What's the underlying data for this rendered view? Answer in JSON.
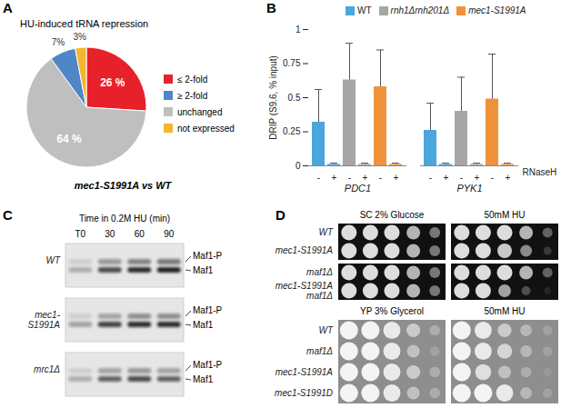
{
  "chart_data": [
    {
      "panel": "A",
      "type": "pie",
      "title": "HU-induced tRNA repression",
      "caption": "mec1-S1991A vs WT",
      "categories": [
        "≤ 2-fold",
        "≥ 2-fold",
        "unchanged",
        "not expressed"
      ],
      "values": [
        26,
        7,
        64,
        3
      ],
      "value_labels": [
        "26 %",
        "7%",
        "64 %",
        "3%"
      ],
      "colors": [
        "#e8202a",
        "#4f86c6",
        "#bfbfbf",
        "#f2b630"
      ],
      "legend": "right",
      "data_labels": true
    },
    {
      "panel": "B",
      "type": "bar",
      "ylabel": "DRIP (S9.6, % input)",
      "xlabel": "RNaseH",
      "categories": [
        "PDC1",
        "PYK1"
      ],
      "subcategories": [
        "-",
        "+"
      ],
      "series": [
        {
          "name": "WT",
          "color": "#4aa6dc",
          "values": [
            [
              0.32,
              0.01
            ],
            [
              0.26,
              0.01
            ]
          ],
          "errors": [
            [
              0.24,
              0.01
            ],
            [
              0.2,
              0.01
            ]
          ]
        },
        {
          "name": "rnh1Δrnh201Δ",
          "color": "#a6a6a6",
          "values": [
            [
              0.63,
              0.01
            ],
            [
              0.4,
              0.01
            ]
          ],
          "errors": [
            [
              0.27,
              0.01
            ],
            [
              0.25,
              0.01
            ]
          ]
        },
        {
          "name": "mec1-S1991A",
          "color": "#f0923c",
          "values": [
            [
              0.58,
              0.01
            ],
            [
              0.49,
              0.01
            ]
          ],
          "errors": [
            [
              0.27,
              0.01
            ],
            [
              0.33,
              0.01
            ]
          ]
        }
      ],
      "ylim": [
        0,
        1
      ],
      "yticks": [
        0,
        0.25,
        0.5,
        0.75,
        1
      ],
      "legend": "top-right"
    }
  ],
  "blot": {
    "panel": "C",
    "title": "Time in 0.2M HU (min)",
    "lanes": [
      "T0",
      "30",
      "60",
      "90"
    ],
    "bands": [
      "Maf1-P",
      "Maf1"
    ],
    "strains": [
      {
        "name": "WT",
        "intensity": [
          [
            0.1,
            0.25
          ],
          [
            0.35,
            0.7
          ],
          [
            0.45,
            0.85
          ],
          [
            0.5,
            0.9
          ]
        ]
      },
      {
        "name": "mec1-S1991A",
        "intensity": [
          [
            0.1,
            0.3
          ],
          [
            0.3,
            0.75
          ],
          [
            0.4,
            0.85
          ],
          [
            0.4,
            0.85
          ]
        ]
      },
      {
        "name": "mrc1Δ",
        "intensity": [
          [
            0.1,
            0.25
          ],
          [
            0.3,
            0.6
          ],
          [
            0.35,
            0.7
          ],
          [
            0.3,
            0.6
          ]
        ]
      }
    ]
  },
  "spot_assay": {
    "panel": "D",
    "blocks": [
      {
        "media": [
          "SC 2% Glucose",
          "50mM HU"
        ],
        "groups": [
          [
            {
              "strain": "WT",
              "growth": [
                [
                  1,
                  1,
                  1,
                  0.8,
                  0.5
                ],
                [
                  1,
                  1,
                  1,
                  0.8,
                  0.4
                ]
              ]
            },
            {
              "strain": "mec1-S1991A",
              "growth": [
                [
                  1,
                  1,
                  1,
                  0.8,
                  0.5
                ],
                [
                  1,
                  1,
                  0.9,
                  0.6,
                  0.2
                ]
              ]
            }
          ],
          [
            {
              "strain": "maf1Δ",
              "growth": [
                [
                  1,
                  1,
                  1,
                  0.8,
                  0.5
                ],
                [
                  1,
                  1,
                  1,
                  0.8,
                  0.4
                ]
              ]
            },
            {
              "strain": "mec1-S1991A maf1Δ",
              "growth": [
                [
                  1,
                  1,
                  1,
                  0.8,
                  0.5
                ],
                [
                  1,
                  1,
                  0.7,
                  0.3,
                  0.1
                ]
              ]
            }
          ]
        ]
      },
      {
        "media": [
          "YP 3% Glycerol",
          "50mM HU"
        ],
        "groups": [
          [
            {
              "strain": "WT",
              "growth": [
                [
                  1,
                  1,
                  0.9,
                  0.6,
                  0.3
                ],
                [
                  1,
                  0.9,
                  0.6,
                  0.4,
                  0.2
                ]
              ]
            },
            {
              "strain": "maf1Δ",
              "growth": [
                [
                  1,
                  1,
                  0.9,
                  0.5,
                  0.2
                ],
                [
                  1,
                  0.9,
                  0.7,
                  0.4,
                  0.2
                ]
              ]
            },
            {
              "strain": "mec1-S1991A",
              "growth": [
                [
                  1,
                  1,
                  0.9,
                  0.6,
                  0.3
                ],
                [
                  1,
                  0.8,
                  0.5,
                  0.3,
                  0.1
                ]
              ]
            },
            {
              "strain": "mec1-S1991D",
              "growth": [
                [
                  1,
                  1,
                  0.9,
                  0.5,
                  0.3
                ],
                [
                  1,
                  1,
                  0.9,
                  0.4,
                  0.2
                ]
              ]
            }
          ]
        ]
      }
    ]
  }
}
